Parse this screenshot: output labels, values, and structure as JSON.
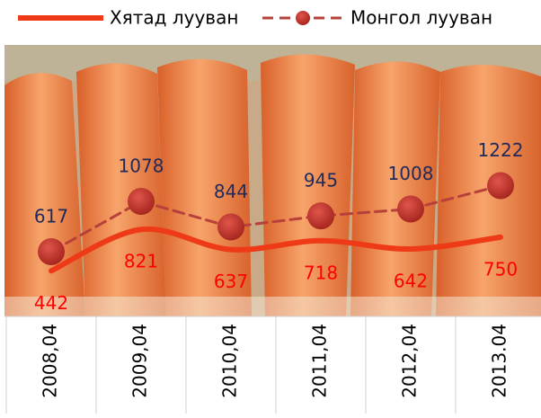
{
  "chart_data": {
    "type": "line",
    "categories": [
      "2008,04",
      "2009,04",
      "2010,04",
      "2011,04",
      "2012,04",
      "2013.04"
    ],
    "series": [
      {
        "name": "Хятад лууван",
        "color": "#ee3a17",
        "label_color": "#ff0000",
        "style": "solid",
        "smooth": true,
        "values": [
          442,
          821,
          637,
          718,
          642,
          750
        ]
      },
      {
        "name": "Монгол лууван",
        "color": "#b8403a",
        "label_color": "#1f2a5a",
        "style": "dashed",
        "markers": true,
        "values": [
          617,
          1078,
          844,
          945,
          1008,
          1222
        ]
      }
    ]
  }
}
